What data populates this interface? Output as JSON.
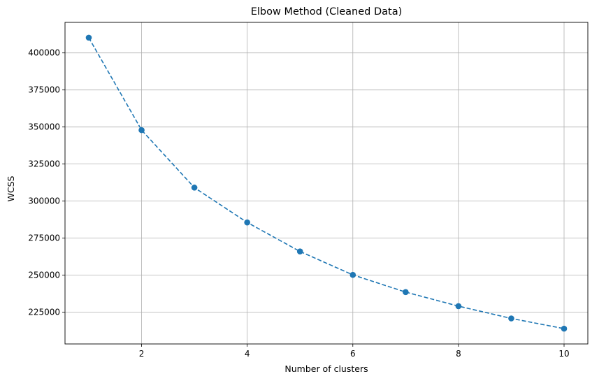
{
  "chart_data": {
    "type": "line",
    "title": "Elbow Method (Cleaned Data)",
    "xlabel": "Number of clusters",
    "ylabel": "WCSS",
    "x": [
      1,
      2,
      3,
      4,
      5,
      6,
      7,
      8,
      9,
      10
    ],
    "series": [
      {
        "values": [
          410300,
          347900,
          309100,
          285600,
          266000,
          250200,
          238600,
          229100,
          220800,
          213900
        ],
        "color": "#1f77b4",
        "line_style": "dashed",
        "marker": "circle"
      }
    ],
    "xticks": [
      2,
      4,
      6,
      8,
      10
    ],
    "xtick_labels": [
      "2",
      "4",
      "6",
      "8",
      "10"
    ],
    "yticks": [
      225000,
      250000,
      275000,
      300000,
      325000,
      350000,
      375000,
      400000
    ],
    "ytick_labels": [
      "225000",
      "250000",
      "275000",
      "300000",
      "325000",
      "350000",
      "375000",
      "400000"
    ],
    "xlim": [
      0.55,
      10.45
    ],
    "ylim": [
      203580,
      420620
    ],
    "grid": true,
    "grid_color": "#b0b0b0"
  }
}
